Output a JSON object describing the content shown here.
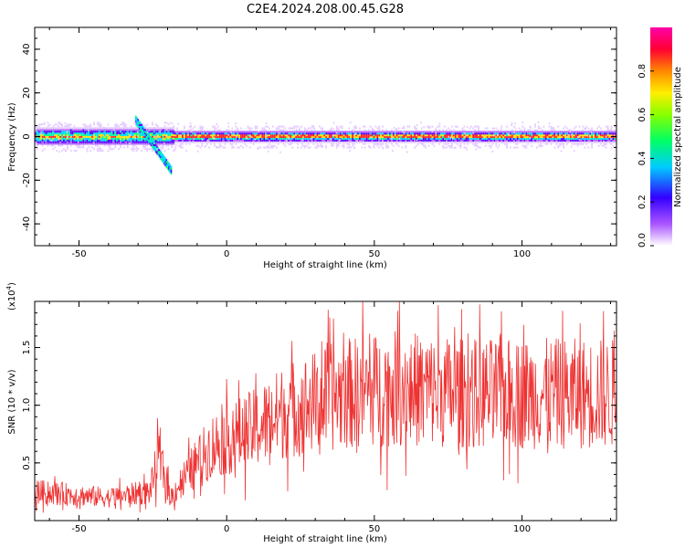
{
  "title": "C2E4.2024.208.00.45.G28",
  "chart_data": [
    {
      "type": "heatmap",
      "xlabel": "Height of straight line (km)",
      "ylabel": "Frequency (Hz)",
      "xlim": [
        -65,
        132
      ],
      "ylim": [
        -50,
        50
      ],
      "x_ticks": [
        "-50",
        "0",
        "50",
        "100"
      ],
      "y_ticks": [
        "40",
        "20",
        "0",
        "-20",
        "-40"
      ],
      "colorbar": {
        "label": "Normalized spectral amplitude",
        "range": [
          0,
          1
        ],
        "ticks": [
          "0.0",
          "0.2",
          "0.4",
          "0.6",
          "0.8"
        ]
      },
      "band": {
        "center_hz": 0,
        "half_width_hz_approx": 3,
        "disturbed_segment_km": [
          -30,
          -18
        ],
        "note_feature": "diagonal streak from ~+8 Hz to ~-15 Hz between -30 km and -19 km"
      }
    },
    {
      "type": "line",
      "xlabel": "Height of straight line (km)",
      "ylabel": "SNR (10 * v/v)",
      "y_scale_label": "(x10",
      "y_scale_exp": "4",
      "xlim": [
        -65,
        132
      ],
      "ylim": [
        0,
        1.9
      ],
      "x_ticks": [
        "-50",
        "0",
        "50",
        "100"
      ],
      "y_ticks": [
        "0.5",
        "1.0",
        "1.5"
      ],
      "series_color": "#ee3333",
      "trend_points": [
        {
          "x": -65,
          "y": 0.25
        },
        {
          "x": -40,
          "y": 0.2
        },
        {
          "x": -26,
          "y": 0.25
        },
        {
          "x": -23,
          "y": 0.55
        },
        {
          "x": -19,
          "y": 0.2
        },
        {
          "x": -15,
          "y": 0.35
        },
        {
          "x": -5,
          "y": 0.65
        },
        {
          "x": 10,
          "y": 0.8
        },
        {
          "x": 20,
          "y": 0.95
        },
        {
          "x": 40,
          "y": 1.1
        },
        {
          "x": 60,
          "y": 1.15
        },
        {
          "x": 80,
          "y": 1.1
        },
        {
          "x": 100,
          "y": 1.1
        },
        {
          "x": 132,
          "y": 1.1
        }
      ],
      "peak": {
        "x": 46,
        "y": 1.9
      }
    }
  ]
}
